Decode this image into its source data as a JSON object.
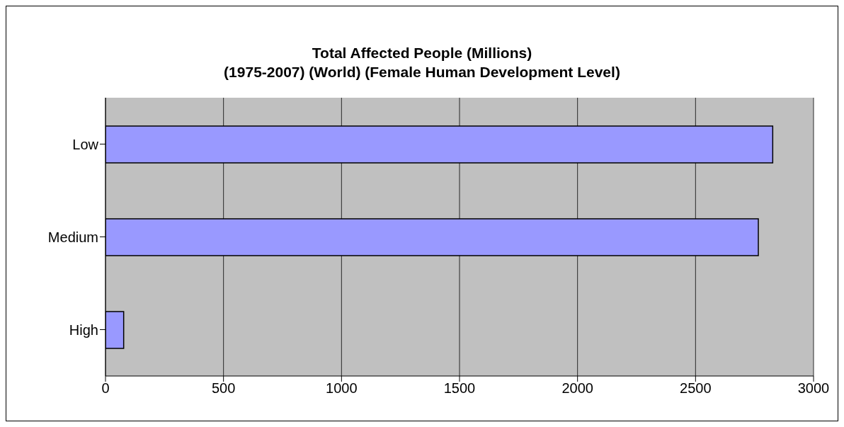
{
  "chart_data": {
    "type": "bar",
    "orientation": "horizontal",
    "title": "Total Affected People (Millions)\n(1975-2007) (World) (Female Human Development Level)",
    "categories": [
      "Low",
      "Medium",
      "High"
    ],
    "values": [
      2827,
      2766,
      77
    ],
    "color": "#9999ff",
    "xlim": [
      0,
      3000
    ],
    "xticks": [
      0,
      500,
      1000,
      1500,
      2000,
      2500,
      3000
    ],
    "grid": "x"
  }
}
